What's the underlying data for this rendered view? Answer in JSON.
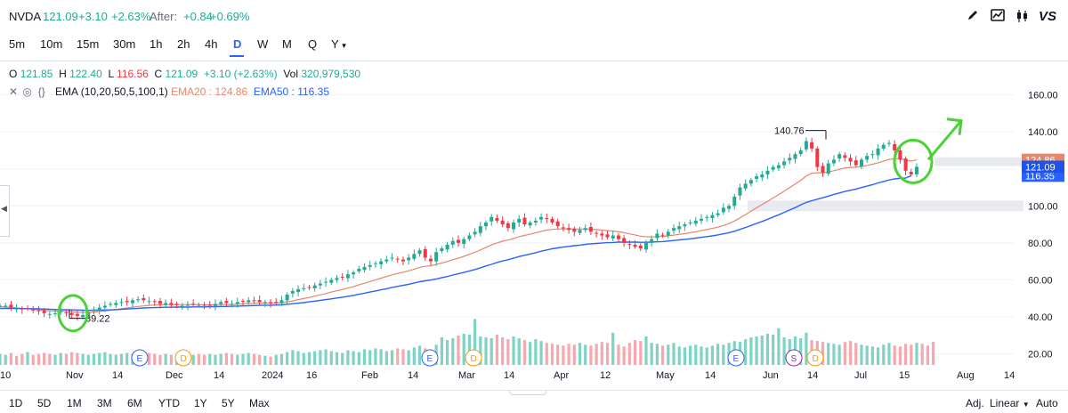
{
  "header": {
    "symbol": "NVDA",
    "price": "121.09",
    "change": "+3.10",
    "change_pct": "+2.63%",
    "after_label": "After:",
    "after_change": "+0.84",
    "after_change_pct": "+0.69%",
    "tools": [
      "pencil-icon",
      "chart-style-icon",
      "candles-icon",
      "compare-vs-icon"
    ],
    "vs_label": "VS"
  },
  "intervals": [
    "5m",
    "10m",
    "15m",
    "30m",
    "1h",
    "2h",
    "4h",
    "D",
    "W",
    "M",
    "Q",
    "Y"
  ],
  "active_interval": "D",
  "ohlc": {
    "o_label": "O",
    "o": "121.85",
    "h_label": "H",
    "h": "122.40",
    "l_label": "L",
    "l": "116.56",
    "c_label": "C",
    "c": "121.09",
    "chg": "+3.10 (+2.63%)",
    "vol_label": "Vol",
    "vol": "320,979,530"
  },
  "indicator": {
    "name": "EMA (10,20,50,5,100,1)",
    "ema20_label": "EMA20 : 124.86",
    "ema50_label": "EMA50 : 116.35"
  },
  "ranges": [
    "1D",
    "5D",
    "1M",
    "3M",
    "6M",
    "YTD",
    "1Y",
    "5Y",
    "Max"
  ],
  "bottom_right": {
    "adj": "Adj.",
    "scale": "Linear",
    "auto": "Auto"
  },
  "colors": {
    "up": "#22ab94",
    "down": "#f23645",
    "ema20": "#e8866a",
    "ema50": "#2962ff",
    "annotation": "#4cd137"
  },
  "chart_data": {
    "type": "candlestick",
    "symbol": "NVDA",
    "ylim": [
      14,
      168
    ],
    "yticks": [
      20,
      40,
      60,
      80,
      100,
      120,
      140,
      160
    ],
    "x_labels": [
      "10",
      "Nov",
      "14",
      "Dec",
      "14",
      "2024",
      "16",
      "Feb",
      "14",
      "Mar",
      "14",
      "Apr",
      "12",
      "May",
      "14",
      "Jun",
      "14",
      "Jul",
      "15",
      "Aug",
      "14"
    ],
    "x_label_dates": [
      "2023-10-10",
      "2023-11-01",
      "2023-11-14",
      "2023-12-01",
      "2023-12-14",
      "2024-01-02",
      "2024-01-16",
      "2024-02-01",
      "2024-02-14",
      "2024-03-01",
      "2024-03-14",
      "2024-04-01",
      "2024-04-12",
      "2024-05-01",
      "2024-05-14",
      "2024-06-03",
      "2024-06-14",
      "2024-07-01",
      "2024-07-15",
      "2024-08-01",
      "2024-08-14"
    ],
    "closes": [
      46,
      46,
      45,
      44.5,
      44,
      44.5,
      43.5,
      43,
      42,
      41.5,
      42,
      43,
      42,
      41,
      40.5,
      41,
      42.5,
      44,
      45,
      46,
      47,
      47.5,
      48,
      48,
      49,
      49.5,
      49,
      48.5,
      48,
      47,
      47.5,
      46.5,
      46.5,
      46,
      46.5,
      47,
      46.5,
      46,
      46.5,
      47,
      48,
      47.5,
      47,
      48,
      48.5,
      49,
      48.5,
      48,
      48,
      47.5,
      48,
      49,
      52,
      54,
      55,
      55.5,
      56,
      57,
      58,
      59,
      60,
      61,
      61.5,
      63,
      64,
      66,
      67,
      68,
      69,
      70,
      71,
      72,
      71,
      70,
      72,
      74,
      76,
      72,
      70,
      75,
      77,
      79,
      81,
      80,
      82,
      84,
      86,
      89,
      91,
      94,
      92,
      90,
      88,
      91,
      93,
      90,
      91,
      92,
      94,
      93,
      91,
      89,
      88,
      87,
      86,
      87,
      88,
      86,
      85,
      84,
      83,
      84,
      82,
      80,
      79,
      78,
      77,
      80,
      82,
      85,
      84,
      86,
      88,
      89,
      90,
      91,
      92,
      93,
      94,
      95,
      96,
      99,
      100,
      105,
      110,
      112,
      114,
      116,
      117,
      119,
      121,
      122,
      124,
      126,
      128,
      130,
      135,
      131,
      121,
      118,
      123,
      125,
      128,
      126,
      124,
      122,
      125,
      127,
      128,
      131,
      133,
      134,
      130,
      125,
      119,
      117,
      121.09
    ],
    "ema20": [
      45.5,
      45.3,
      45.1,
      44.8,
      44.5,
      44.4,
      44.1,
      43.8,
      43.5,
      43.2,
      43.1,
      43.1,
      43,
      42.8,
      42.5,
      42.4,
      42.4,
      42.6,
      42.9,
      43.2,
      43.6,
      44,
      44.4,
      44.8,
      45.2,
      45.6,
      45.9,
      46.2,
      46.4,
      46.5,
      46.6,
      46.6,
      46.6,
      46.6,
      46.6,
      46.6,
      46.6,
      46.5,
      46.5,
      46.6,
      46.7,
      46.7,
      46.7,
      46.8,
      47,
      47.2,
      47.3,
      47.4,
      47.4,
      47.4,
      47.5,
      47.6,
      48.1,
      48.6,
      49.3,
      49.9,
      50.5,
      51.2,
      51.9,
      52.6,
      53.4,
      54.1,
      54.8,
      55.6,
      56.4,
      57.3,
      58.2,
      59.1,
      60,
      60.9,
      61.8,
      62.7,
      63.5,
      64.1,
      64.9,
      65.8,
      66.8,
      67.3,
      67.6,
      68.3,
      69.1,
      69.9,
      70.9,
      71.7,
      72.7,
      73.8,
      74.9,
      76.2,
      77.5,
      78.9,
      80,
      80.9,
      81.5,
      82.4,
      83.4,
      84,
      84.7,
      85.4,
      86.2,
      86.9,
      87.3,
      87.5,
      87.6,
      87.6,
      87.5,
      87.5,
      87.5,
      87.4,
      87.2,
      86.9,
      86.6,
      86.4,
      86,
      85.5,
      84.9,
      84.3,
      83.6,
      83.3,
      83.2,
      83.4,
      83.5,
      83.8,
      84.2,
      84.6,
      85,
      85.5,
      86,
      86.6,
      87.2,
      87.8,
      88.5,
      89.4,
      90.4,
      91.8,
      93.5,
      95.3,
      97.1,
      99,
      100.7,
      102.5,
      104.3,
      106.1,
      108,
      109.9,
      111.8,
      113.8,
      116.2,
      117.6,
      117.9,
      117.9,
      118.4,
      119,
      119.8,
      120.4,
      120.8,
      120.9,
      121.3,
      121.9,
      122.5,
      123.3,
      124.2,
      125.1,
      125.5,
      125.5,
      124.9,
      124.2,
      124.86
    ],
    "ema50": [
      44.5,
      44.5,
      44.5,
      44.5,
      44.5,
      44.4,
      44.4,
      44.3,
      44.2,
      44.1,
      44,
      43.9,
      43.9,
      43.8,
      43.7,
      43.6,
      43.5,
      43.6,
      43.6,
      43.7,
      43.8,
      43.9,
      44.1,
      44.2,
      44.4,
      44.6,
      44.8,
      44.9,
      45,
      45.1,
      45.2,
      45.2,
      45.3,
      45.3,
      45.3,
      45.4,
      45.4,
      45.4,
      45.5,
      45.5,
      45.6,
      45.6,
      45.7,
      45.8,
      45.9,
      46,
      46.1,
      46.2,
      46.3,
      46.3,
      46.4,
      46.5,
      46.8,
      47.1,
      47.4,
      47.7,
      48.1,
      48.5,
      48.9,
      49.3,
      49.7,
      50.2,
      50.6,
      51.1,
      51.6,
      52.2,
      52.8,
      53.4,
      54,
      54.6,
      55.2,
      55.9,
      56.5,
      57,
      57.6,
      58.3,
      59,
      59.5,
      59.9,
      60.5,
      61.2,
      61.8,
      62.6,
      63.3,
      64,
      64.8,
      65.6,
      66.5,
      67.5,
      68.4,
      69.4,
      70.2,
      70.9,
      71.7,
      72.6,
      73.3,
      74,
      74.7,
      75.5,
      76.2,
      76.8,
      77.3,
      77.7,
      78.1,
      78.5,
      78.8,
      79.2,
      79.5,
      79.7,
      79.9,
      80.1,
      80.2,
      80.4,
      80.4,
      80.4,
      80.4,
      80.3,
      80.3,
      80.4,
      80.6,
      80.7,
      81,
      81.3,
      81.6,
      81.9,
      82.2,
      82.6,
      83,
      83.4,
      83.8,
      84.3,
      84.9,
      85.5,
      86.3,
      87.3,
      88.3,
      89.4,
      90.5,
      91.6,
      92.8,
      94,
      95.2,
      96.5,
      97.8,
      99.1,
      100.6,
      101.9,
      102.8,
      103.6,
      104.4,
      105.3,
      106.2,
      107,
      107.8,
      108.4,
      109.1,
      109.9,
      110.7,
      111.5,
      112.4,
      113.2,
      114,
      114.6,
      114.9,
      115,
      116.35
    ],
    "volumes": [
      12,
      11,
      13,
      10,
      12,
      14,
      11,
      12,
      13,
      12,
      11,
      13,
      12,
      14,
      13,
      12,
      11,
      12,
      13,
      14,
      12,
      11,
      12,
      13,
      12,
      11,
      12,
      13,
      12,
      11,
      12,
      11,
      12,
      11,
      10,
      11,
      12,
      11,
      12,
      11,
      12,
      13,
      12,
      11,
      12,
      13,
      12,
      11,
      10,
      9,
      11,
      12,
      14,
      16,
      15,
      13,
      14,
      15,
      16,
      17,
      15,
      14,
      13,
      16,
      15,
      14,
      17,
      16,
      18,
      17,
      15,
      16,
      18,
      17,
      16,
      19,
      21,
      18,
      17,
      22,
      30,
      27,
      29,
      32,
      34,
      33,
      50,
      31,
      30,
      29,
      33,
      30,
      28,
      31,
      29,
      27,
      25,
      28,
      26,
      24,
      23,
      22,
      21,
      23,
      22,
      24,
      22,
      21,
      23,
      25,
      24,
      35,
      22,
      20,
      24,
      27,
      26,
      31,
      24,
      23,
      21,
      22,
      24,
      20,
      19,
      21,
      22,
      20,
      19,
      21,
      23,
      22,
      24,
      26,
      25,
      28,
      30,
      31,
      32,
      34,
      33,
      40,
      30,
      28,
      31,
      29,
      35,
      27,
      26,
      25,
      24,
      23,
      22,
      25,
      26,
      24,
      22,
      21,
      20,
      19,
      22,
      24,
      21,
      20,
      23,
      22,
      24,
      23,
      21,
      25
    ],
    "annotations": {
      "high_label": "140.76",
      "low_label": "39.22",
      "price_label": "121.09",
      "ema20_label": "124.86",
      "ema50_label": "116.35"
    },
    "event_markers": [
      {
        "label": "E",
        "color": "#2962ff"
      },
      {
        "label": "D",
        "color": "#ff9800"
      },
      {
        "label": "E",
        "color": "#2962ff"
      },
      {
        "label": "D",
        "color": "#ff9800"
      },
      {
        "label": "E",
        "color": "#2962ff"
      },
      {
        "label": "S",
        "color": "#9c27b0"
      },
      {
        "label": "D",
        "color": "#ff9800"
      }
    ]
  }
}
